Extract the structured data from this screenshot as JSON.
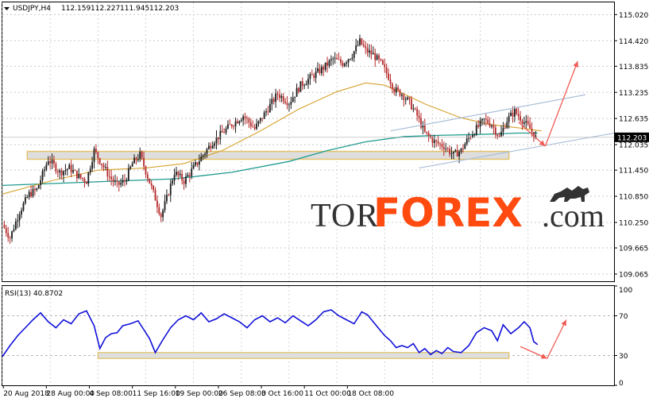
{
  "chart_data": [
    {
      "type": "candlestick",
      "symbol_label": "USDJPY,H4",
      "ohlc_readout": [
        "112.159",
        "112.227",
        "111.945",
        "112.203"
      ],
      "current_price": "112.203",
      "ylim": [
        108.9,
        115.3
      ],
      "ytick_labels": [
        "115.020",
        "114.420",
        "113.835",
        "113.235",
        "112.635",
        "112.035",
        "111.450",
        "110.850",
        "110.250",
        "109.665",
        "109.065"
      ],
      "xtick_labels": [
        "20 Aug 2018",
        "28 Aug 00:00",
        "4 Sep 08:00",
        "11 Sep 16:00",
        "19 Sep 00:00",
        "26 Sep 08:00",
        "3 Oct 16:00",
        "11 Oct 00:00",
        "18 Oct 08:00"
      ],
      "close_path": [
        [
          0,
          110.2
        ],
        [
          4,
          109.9
        ],
        [
          9,
          110.5
        ],
        [
          14,
          110.9
        ],
        [
          18,
          111.0
        ],
        [
          24,
          111.7
        ],
        [
          30,
          111.4
        ],
        [
          35,
          111.5
        ],
        [
          40,
          111.3
        ],
        [
          44,
          111.2
        ],
        [
          48,
          111.9
        ],
        [
          52,
          111.6
        ],
        [
          56,
          111.3
        ],
        [
          60,
          111.1
        ],
        [
          64,
          111.2
        ],
        [
          68,
          111.6
        ],
        [
          72,
          111.8
        ],
        [
          76,
          111.3
        ],
        [
          80,
          110.8
        ],
        [
          83,
          110.4
        ],
        [
          86,
          110.8
        ],
        [
          90,
          111.4
        ],
        [
          95,
          111.2
        ],
        [
          100,
          111.5
        ],
        [
          105,
          111.8
        ],
        [
          110,
          112.1
        ],
        [
          115,
          112.3
        ],
        [
          120,
          112.5
        ],
        [
          126,
          112.7
        ],
        [
          132,
          112.4
        ],
        [
          138,
          112.8
        ],
        [
          144,
          113.2
        ],
        [
          150,
          113.0
        ],
        [
          156,
          113.4
        ],
        [
          162,
          113.6
        ],
        [
          168,
          113.8
        ],
        [
          173,
          114.0
        ],
        [
          178,
          113.9
        ],
        [
          183,
          114.1
        ],
        [
          187,
          114.4
        ],
        [
          190,
          114.2
        ],
        [
          194,
          114.1
        ],
        [
          198,
          113.9
        ],
        [
          202,
          113.6
        ],
        [
          205,
          113.3
        ],
        [
          209,
          113.2
        ],
        [
          213,
          113.0
        ],
        [
          217,
          112.7
        ],
        [
          221,
          112.3
        ],
        [
          226,
          112.1
        ],
        [
          231,
          112.0
        ],
        [
          236,
          111.8
        ],
        [
          240,
          111.9
        ],
        [
          244,
          112.2
        ],
        [
          248,
          112.4
        ],
        [
          252,
          112.6
        ],
        [
          256,
          112.5
        ],
        [
          260,
          112.2
        ],
        [
          264,
          112.6
        ],
        [
          268,
          112.8
        ],
        [
          272,
          112.6
        ],
        [
          276,
          112.4
        ],
        [
          279,
          112.2
        ]
      ],
      "ma_slow": [
        [
          0,
          111.1
        ],
        [
          30,
          111.15
        ],
        [
          60,
          111.2
        ],
        [
          90,
          111.25
        ],
        [
          120,
          111.4
        ],
        [
          150,
          111.65
        ],
        [
          170,
          111.9
        ],
        [
          190,
          112.1
        ],
        [
          210,
          112.22
        ],
        [
          230,
          112.25
        ],
        [
          250,
          112.27
        ],
        [
          270,
          112.3
        ],
        [
          280,
          112.3
        ]
      ],
      "ma_fast": [
        [
          0,
          110.9
        ],
        [
          25,
          111.2
        ],
        [
          50,
          111.45
        ],
        [
          75,
          111.5
        ],
        [
          95,
          111.6
        ],
        [
          115,
          111.9
        ],
        [
          135,
          112.35
        ],
        [
          155,
          112.85
        ],
        [
          175,
          113.25
        ],
        [
          190,
          113.45
        ],
        [
          200,
          113.4
        ],
        [
          210,
          113.2
        ],
        [
          222,
          112.95
        ],
        [
          240,
          112.65
        ],
        [
          255,
          112.5
        ],
        [
          270,
          112.42
        ],
        [
          282,
          112.35
        ]
      ],
      "support_zone": [
        111.7,
        111.88
      ],
      "channel_upper": [
        [
          203,
          112.35
        ],
        [
          305,
          113.18
        ]
      ],
      "channel_lower": [
        [
          218,
          111.5
        ],
        [
          320,
          112.3
        ]
      ],
      "forecast_arrows": [
        {
          "from": [
            270,
            112.55
          ],
          "to": [
            284,
            112.0
          ]
        },
        {
          "from": [
            284,
            112.0
          ],
          "to": [
            301,
            113.95
          ]
        }
      ],
      "line_colors": {
        "bull": "#1a1a1a",
        "bear": "#b52a2a",
        "ma_fast": "#d6a22e",
        "ma_slow": "#1f9b8f",
        "channel": "#a9bfd8",
        "arrow": "#f25b55",
        "zone_fill": "#dedede",
        "zone_stroke": "#e4c36e"
      }
    },
    {
      "type": "line",
      "title": "RSI(13) 40.8702",
      "ylim": [
        0,
        100
      ],
      "ytick_labels": [
        "100",
        "70",
        "30",
        "0"
      ],
      "levels": [
        70,
        30
      ],
      "values": [
        [
          0,
          29
        ],
        [
          4,
          40
        ],
        [
          8,
          50
        ],
        [
          12,
          58
        ],
        [
          16,
          66
        ],
        [
          20,
          73
        ],
        [
          24,
          64
        ],
        [
          28,
          58
        ],
        [
          32,
          66
        ],
        [
          36,
          62
        ],
        [
          40,
          72
        ],
        [
          44,
          75
        ],
        [
          48,
          60
        ],
        [
          51,
          37
        ],
        [
          54,
          48
        ],
        [
          57,
          52
        ],
        [
          60,
          53
        ],
        [
          63,
          60
        ],
        [
          67,
          62
        ],
        [
          71,
          65
        ],
        [
          74,
          56
        ],
        [
          77,
          47
        ],
        [
          80,
          33
        ],
        [
          84,
          46
        ],
        [
          88,
          58
        ],
        [
          92,
          66
        ],
        [
          96,
          70
        ],
        [
          100,
          66
        ],
        [
          104,
          73
        ],
        [
          108,
          64
        ],
        [
          112,
          67
        ],
        [
          116,
          72
        ],
        [
          120,
          68
        ],
        [
          124,
          64
        ],
        [
          128,
          58
        ],
        [
          132,
          66
        ],
        [
          136,
          70
        ],
        [
          140,
          64
        ],
        [
          144,
          68
        ],
        [
          148,
          63
        ],
        [
          152,
          70
        ],
        [
          156,
          65
        ],
        [
          160,
          60
        ],
        [
          164,
          66
        ],
        [
          168,
          74
        ],
        [
          172,
          76
        ],
        [
          176,
          70
        ],
        [
          180,
          66
        ],
        [
          184,
          62
        ],
        [
          188,
          74
        ],
        [
          191,
          71
        ],
        [
          194,
          64
        ],
        [
          197,
          57
        ],
        [
          200,
          50
        ],
        [
          203,
          45
        ],
        [
          206,
          38
        ],
        [
          209,
          40
        ],
        [
          212,
          38
        ],
        [
          215,
          42
        ],
        [
          218,
          33
        ],
        [
          221,
          37
        ],
        [
          224,
          31
        ],
        [
          227,
          35
        ],
        [
          230,
          32
        ],
        [
          233,
          38
        ],
        [
          236,
          34
        ],
        [
          240,
          33
        ],
        [
          244,
          40
        ],
        [
          248,
          53
        ],
        [
          252,
          58
        ],
        [
          256,
          55
        ],
        [
          259,
          45
        ],
        [
          262,
          61
        ],
        [
          266,
          52
        ],
        [
          270,
          58
        ],
        [
          273,
          64
        ],
        [
          276,
          58
        ],
        [
          278,
          44
        ],
        [
          280,
          41
        ]
      ],
      "support_zone": [
        27,
        33
      ],
      "forecast_arrows": [
        {
          "from": [
            271,
            39
          ],
          "to": [
            285,
            27
          ]
        },
        {
          "from": [
            285,
            27
          ],
          "to": [
            295,
            66
          ]
        }
      ],
      "line_colors": {
        "rsi": "#1010d8"
      }
    }
  ],
  "watermark": {
    "part1": "TOR",
    "part2": "FOREX",
    "part3": ".com"
  }
}
